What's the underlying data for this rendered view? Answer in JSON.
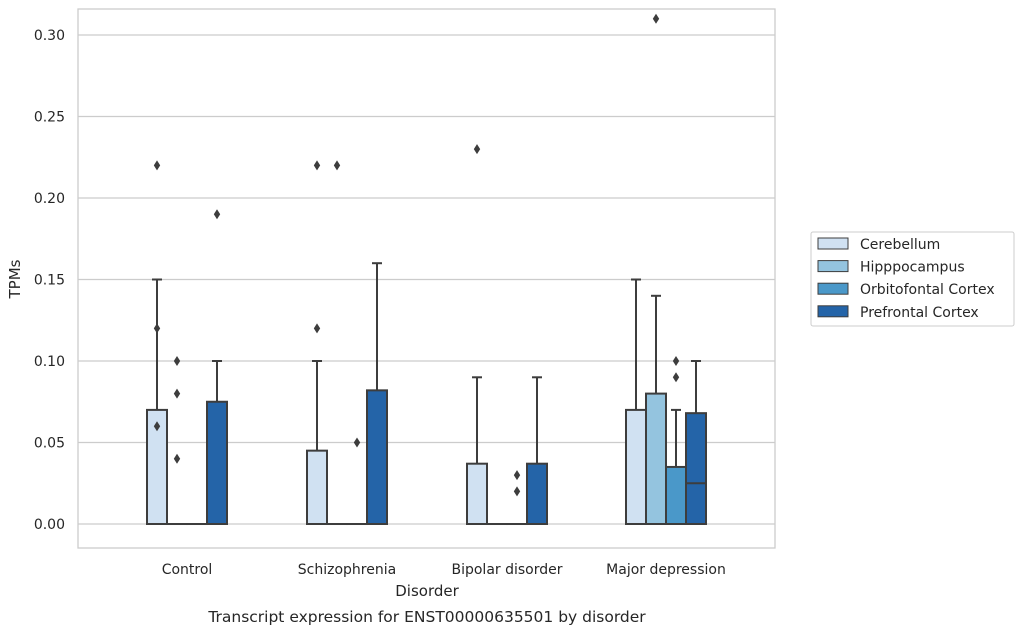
{
  "chart_data": {
    "type": "box",
    "caption": "Transcript expression for ENST00000635501 by disorder",
    "xlabel": "Disorder",
    "ylabel": "TPMs",
    "ylim": [
      -0.015,
      0.326
    ],
    "yticks": [
      0.0,
      0.05,
      0.1,
      0.15,
      0.2,
      0.25,
      0.3
    ],
    "ytick_labels": [
      "0.00",
      "0.05",
      "0.10",
      "0.15",
      "0.20",
      "0.25",
      "0.30"
    ],
    "grid": true,
    "legend_position": "right",
    "categories": [
      "Control",
      "Schizophrenia",
      "Bipolar disorder",
      "Major depression"
    ],
    "series": [
      {
        "name": "Cerebellum",
        "color": "#d0e1f2",
        "boxes": [
          {
            "q1": 0.0,
            "median": 0.0,
            "q3": 0.07,
            "whisker_low": 0.0,
            "whisker_high": 0.15,
            "outliers": [
              0.22,
              0.12,
              0.06
            ]
          },
          {
            "q1": 0.0,
            "median": 0.0,
            "q3": 0.045,
            "whisker_low": 0.0,
            "whisker_high": 0.1,
            "outliers": [
              0.22,
              0.12
            ]
          },
          {
            "q1": 0.0,
            "median": 0.0,
            "q3": 0.037,
            "whisker_low": 0.0,
            "whisker_high": 0.09,
            "outliers": [
              0.23
            ]
          },
          {
            "q1": 0.0,
            "median": 0.0,
            "q3": 0.07,
            "whisker_low": 0.0,
            "whisker_high": 0.15,
            "outliers": []
          }
        ]
      },
      {
        "name": "Hipppocampus",
        "color": "#94c4df",
        "boxes": [
          {
            "q1": 0.0,
            "median": 0.0,
            "q3": 0.0,
            "whisker_low": 0.0,
            "whisker_high": 0.0,
            "outliers": [
              0.1,
              0.08,
              0.04
            ]
          },
          {
            "q1": 0.0,
            "median": 0.0,
            "q3": 0.0,
            "whisker_low": 0.0,
            "whisker_high": 0.0,
            "outliers": [
              0.22
            ]
          },
          {
            "q1": 0.0,
            "median": 0.0,
            "q3": 0.0,
            "whisker_low": 0.0,
            "whisker_high": 0.0,
            "outliers": []
          },
          {
            "q1": 0.0,
            "median": 0.0,
            "q3": 0.08,
            "whisker_low": 0.0,
            "whisker_high": 0.14,
            "outliers": [
              0.31
            ]
          }
        ]
      },
      {
        "name": "Orbitofontal Cortex",
        "color": "#4a98c9",
        "boxes": [
          {
            "q1": 0.0,
            "median": 0.0,
            "q3": 0.0,
            "whisker_low": 0.0,
            "whisker_high": 0.0,
            "outliers": []
          },
          {
            "q1": 0.0,
            "median": 0.0,
            "q3": 0.0,
            "whisker_low": 0.0,
            "whisker_high": 0.0,
            "outliers": [
              0.05
            ]
          },
          {
            "q1": 0.0,
            "median": 0.0,
            "q3": 0.0,
            "whisker_low": 0.0,
            "whisker_high": 0.0,
            "outliers": [
              0.03,
              0.02
            ]
          },
          {
            "q1": 0.0,
            "median": 0.0,
            "q3": 0.035,
            "whisker_low": 0.0,
            "whisker_high": 0.07,
            "outliers": [
              0.1,
              0.09
            ]
          }
        ]
      },
      {
        "name": "Prefrontal Cortex",
        "color": "#2464a8",
        "boxes": [
          {
            "q1": 0.0,
            "median": 0.0,
            "q3": 0.075,
            "whisker_low": 0.0,
            "whisker_high": 0.1,
            "outliers": [
              0.19
            ]
          },
          {
            "q1": 0.0,
            "median": 0.0,
            "q3": 0.082,
            "whisker_low": 0.0,
            "whisker_high": 0.16,
            "outliers": []
          },
          {
            "q1": 0.0,
            "median": 0.0,
            "q3": 0.037,
            "whisker_low": 0.0,
            "whisker_high": 0.09,
            "outliers": []
          },
          {
            "q1": 0.0,
            "median": 0.025,
            "q3": 0.068,
            "whisker_low": 0.0,
            "whisker_high": 0.1,
            "outliers": []
          }
        ]
      }
    ]
  }
}
